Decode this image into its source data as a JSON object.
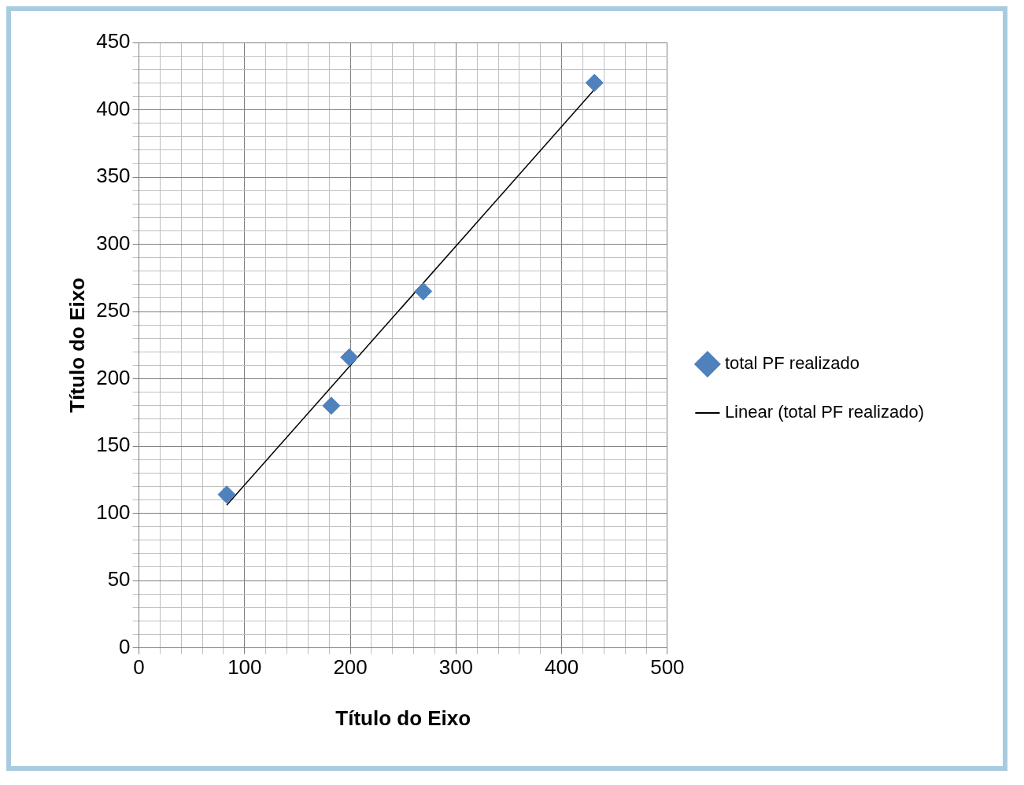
{
  "chart_data": {
    "type": "scatter",
    "xlabel": "Título do Eixo",
    "ylabel": "Título do Eixo",
    "xlim": [
      0,
      500
    ],
    "ylim": [
      0,
      450
    ],
    "xticks": [
      0,
      {
        "value": 20,
        "label": null
      },
      {
        "value": 40,
        "label": null
      },
      {
        "value": 60,
        "label": null
      },
      {
        "value": 80,
        "label": null
      },
      100,
      {
        "value": 120,
        "label": null
      },
      {
        "value": 140,
        "label": null
      },
      {
        "value": 160,
        "label": null
      },
      {
        "value": 180,
        "label": null
      },
      200,
      {
        "value": 220,
        "label": null
      },
      {
        "value": 240,
        "label": null
      },
      {
        "value": 260,
        "label": null
      },
      {
        "value": 280,
        "label": null
      },
      300,
      {
        "value": 320,
        "label": null
      },
      {
        "value": 340,
        "label": null
      },
      {
        "value": 360,
        "label": null
      },
      {
        "value": 380,
        "label": null
      },
      400,
      {
        "value": 420,
        "label": null
      },
      {
        "value": 440,
        "label": null
      },
      {
        "value": 460,
        "label": null
      },
      {
        "value": 480,
        "label": null
      },
      500
    ],
    "yticks": [
      0,
      {
        "value": 10,
        "label": null
      },
      {
        "value": 20,
        "label": null
      },
      {
        "value": 30,
        "label": null
      },
      {
        "value": 40,
        "label": null
      },
      50,
      {
        "value": 60,
        "label": null
      },
      {
        "value": 70,
        "label": null
      },
      {
        "value": 80,
        "label": null
      },
      {
        "value": 90,
        "label": null
      },
      100,
      {
        "value": 110,
        "label": null
      },
      {
        "value": 120,
        "label": null
      },
      {
        "value": 130,
        "label": null
      },
      {
        "value": 140,
        "label": null
      },
      150,
      {
        "value": 160,
        "label": null
      },
      {
        "value": 170,
        "label": null
      },
      {
        "value": 180,
        "label": null
      },
      {
        "value": 190,
        "label": null
      },
      200,
      {
        "value": 210,
        "label": null
      },
      {
        "value": 220,
        "label": null
      },
      {
        "value": 230,
        "label": null
      },
      {
        "value": 240,
        "label": null
      },
      250,
      {
        "value": 260,
        "label": null
      },
      {
        "value": 270,
        "label": null
      },
      {
        "value": 280,
        "label": null
      },
      {
        "value": 290,
        "label": null
      },
      300,
      {
        "value": 310,
        "label": null
      },
      {
        "value": 320,
        "label": null
      },
      {
        "value": 330,
        "label": null
      },
      {
        "value": 340,
        "label": null
      },
      350,
      {
        "value": 360,
        "label": null
      },
      {
        "value": 370,
        "label": null
      },
      {
        "value": 380,
        "label": null
      },
      {
        "value": 390,
        "label": null
      },
      400,
      {
        "value": 410,
        "label": null
      },
      {
        "value": 420,
        "label": null
      },
      {
        "value": 430,
        "label": null
      },
      {
        "value": 440,
        "label": null
      },
      450
    ],
    "grid": true,
    "legend": "right",
    "marker": "diamond",
    "series": [
      {
        "name": "total PF realizado",
        "color": "#4f81bd",
        "x": [
          83,
          182,
          199,
          269,
          431
        ],
        "values": [
          114,
          180,
          216,
          265,
          420
        ]
      },
      {
        "name": "Linear (total PF realizado)",
        "type": "line",
        "color": "#000000",
        "marker": "none",
        "line_style": "solid",
        "x": [
          83,
          431
        ],
        "values": [
          106,
          415
        ]
      }
    ]
  }
}
